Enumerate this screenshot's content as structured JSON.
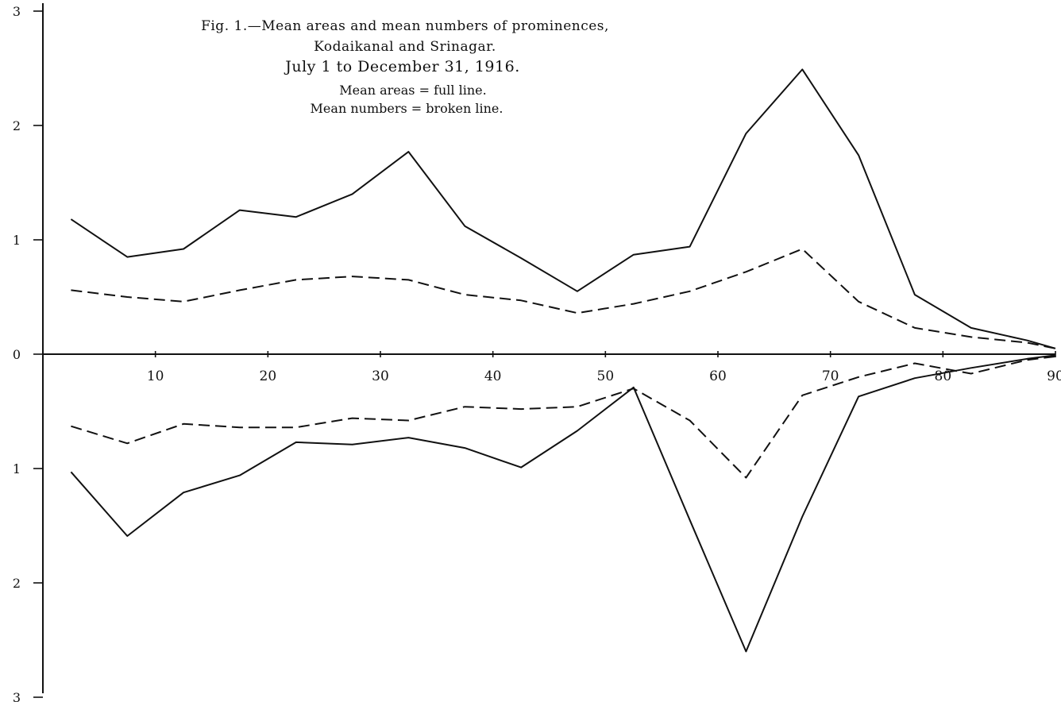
{
  "chart_data": {
    "type": "line",
    "title": "Fig. 1.—Mean areas and mean numbers of prominences,",
    "subtitle": "Kodaikanal and Srinagar.",
    "period": "July 1 to December 31, 1916.",
    "legend": {
      "full": "Mean areas = full line.",
      "broken": "Mean numbers = broken line."
    },
    "x_ticks": [
      "10",
      "20",
      "30",
      "40",
      "50",
      "60",
      "70",
      "80",
      "90"
    ],
    "x_tick_values": [
      10,
      20,
      30,
      40,
      50,
      60,
      70,
      80,
      90
    ],
    "xlim": [
      0,
      90
    ],
    "y_ticks_upper": [
      "3",
      "2",
      "1",
      "0"
    ],
    "y_ticks_lower": [
      "1",
      "2",
      "3"
    ],
    "ylim": [
      -3,
      3
    ],
    "grid": false,
    "panels": [
      {
        "hemisphere": "upper",
        "series": [
          {
            "style": "full",
            "x": [
              2.5,
              7.5,
              12.5,
              17.5,
              22.5,
              27.5,
              32.5,
              37.5,
              42.5,
              47.5,
              52.5,
              57.5,
              62.5,
              67.5,
              72.5,
              77.5,
              82.5,
              87.5,
              90
            ],
            "values": [
              1.18,
              0.85,
              0.92,
              1.26,
              1.2,
              1.4,
              1.77,
              1.12,
              0.84,
              0.55,
              0.87,
              0.94,
              1.93,
              2.49,
              1.74,
              0.52,
              0.23,
              0.12,
              0.05
            ]
          },
          {
            "style": "broken",
            "x": [
              2.5,
              7.5,
              12.5,
              17.5,
              22.5,
              27.5,
              32.5,
              37.5,
              42.5,
              47.5,
              52.5,
              57.5,
              62.5,
              67.5,
              72.5,
              77.5,
              82.5,
              87.5,
              90
            ],
            "values": [
              0.56,
              0.5,
              0.46,
              0.56,
              0.65,
              0.68,
              0.65,
              0.52,
              0.47,
              0.36,
              0.44,
              0.55,
              0.72,
              0.92,
              0.46,
              0.23,
              0.15,
              0.1,
              0.05
            ]
          }
        ]
      },
      {
        "hemisphere": "lower",
        "series": [
          {
            "style": "full",
            "x": [
              2.5,
              7.5,
              12.5,
              17.5,
              22.5,
              27.5,
              32.5,
              37.5,
              42.5,
              47.5,
              52.5,
              57.5,
              62.5,
              67.5,
              72.5,
              77.5,
              82.5,
              87.5,
              90
            ],
            "values": [
              -1.03,
              -1.59,
              -1.21,
              -1.06,
              -0.77,
              -0.79,
              -0.73,
              -0.82,
              -0.99,
              -0.67,
              -0.29,
              -1.45,
              -2.6,
              -1.42,
              -0.37,
              -0.21,
              -0.12,
              -0.04,
              -0.01
            ]
          },
          {
            "style": "broken",
            "x": [
              2.5,
              7.5,
              12.5,
              17.5,
              22.5,
              27.5,
              32.5,
              37.5,
              42.5,
              47.5,
              52.5,
              57.5,
              62.5,
              67.5,
              72.5,
              77.5,
              82.5,
              87.5,
              90
            ],
            "values": [
              -0.63,
              -0.78,
              -0.61,
              -0.64,
              -0.64,
              -0.56,
              -0.58,
              -0.46,
              -0.48,
              -0.46,
              -0.3,
              -0.58,
              -1.08,
              -0.36,
              -0.2,
              -0.08,
              -0.17,
              -0.05,
              -0.02
            ]
          }
        ]
      }
    ]
  }
}
